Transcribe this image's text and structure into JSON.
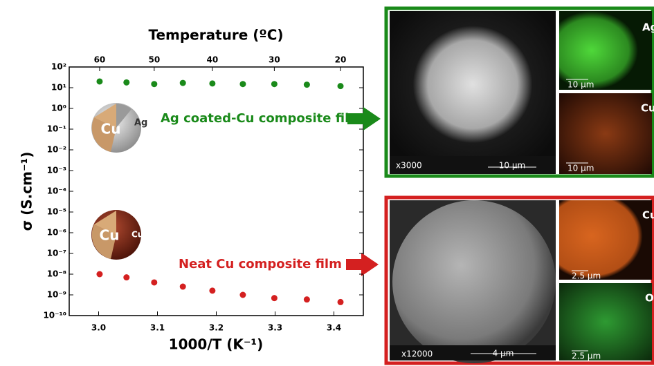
{
  "chart_data": {
    "type": "scatter",
    "x_label": "1000/T (K⁻¹)",
    "y_label": "σ (S.cm⁻¹)",
    "x2_label": "Temperature (ºC)",
    "x": [
      3.0017,
      3.0474,
      3.0945,
      3.1432,
      3.1934,
      3.2452,
      3.2987,
      3.354,
      3.4112
    ],
    "series": [
      {
        "name": "Ag coated-Cu composite film",
        "color": "#1a8a1a",
        "values": [
          20,
          18,
          15,
          17,
          16,
          15,
          15,
          14,
          12
        ]
      },
      {
        "name": "Neat Cu composite film",
        "color": "#d42020",
        "values": [
          1e-08,
          7e-09,
          4e-09,
          2.5e-09,
          1.6e-09,
          1e-09,
          7e-10,
          6e-10,
          4.5e-10
        ]
      }
    ],
    "xlim": [
      2.95,
      3.45
    ],
    "xticks": [
      {
        "value": 3,
        "label": "3.0"
      },
      3.1,
      3.2,
      3.3,
      3.4
    ],
    "x2ticks": [
      {
        "value": 3.0017,
        "label": "60"
      },
      {
        "value": 3.0945,
        "label": "50"
      },
      {
        "value": 3.1934,
        "label": "40"
      },
      {
        "value": 3.2987,
        "label": "30"
      },
      {
        "value": 3.4112,
        "label": "20"
      }
    ],
    "log_y": true,
    "ylim": [
      1e-10,
      100
    ],
    "yticks": [
      {
        "value": 100,
        "label": "10²"
      },
      {
        "value": 10,
        "label": "10¹"
      },
      {
        "value": 1,
        "label": "10⁰"
      },
      {
        "value": 0.1,
        "label": "10⁻¹"
      },
      {
        "value": 0.01,
        "label": "10⁻²"
      },
      {
        "value": 0.001,
        "label": "10⁻³"
      },
      {
        "value": 0.0001,
        "label": "10⁻⁴"
      },
      {
        "value": 1e-05,
        "label": "10⁻⁵"
      },
      {
        "value": 1e-06,
        "label": "10⁻⁶"
      },
      {
        "value": 1e-07,
        "label": "10⁻⁷"
      },
      {
        "value": 1e-08,
        "label": "10⁻⁸"
      },
      {
        "value": 1e-09,
        "label": "10⁻⁹"
      },
      {
        "value": 1e-10,
        "label": "10⁻¹⁰"
      }
    ],
    "sphere_labels": [
      "Cu",
      "Ag",
      "Cu",
      "CuO"
    ]
  },
  "micrographs": {
    "ag_panel": {
      "magnification": "x3000",
      "scale": "10 µm",
      "map_top": "Ag",
      "map_top_scale": "10 µm",
      "map_bottom": "Cu",
      "map_bottom_scale": "10 µm"
    },
    "cu_panel": {
      "magnification": "x12000",
      "scale": "4 µm",
      "map_top": "Cu",
      "map_top_scale": "2.5 µm",
      "map_bottom": "O",
      "map_bottom_scale": "2.5 µm"
    }
  }
}
